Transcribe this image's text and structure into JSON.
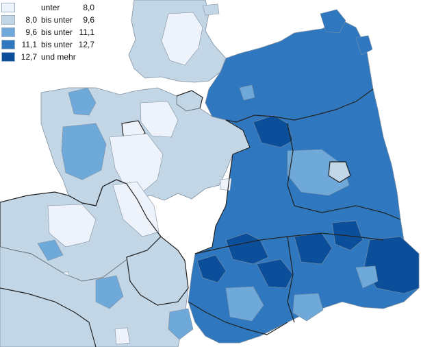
{
  "legend": {
    "items": [
      {
        "lower": "",
        "connector": "unter",
        "upper": "8,0",
        "color": "#eef3fb"
      },
      {
        "lower": "8,0",
        "connector": "bis unter",
        "upper": "9,6",
        "color": "#c2d6e6"
      },
      {
        "lower": "9,6",
        "connector": "bis unter",
        "upper": "11,1",
        "color": "#6ea9d9"
      },
      {
        "lower": "11,1",
        "connector": "bis unter",
        "upper": "12,7",
        "color": "#2f78c0"
      },
      {
        "lower": "12,7",
        "connector": "und mehr",
        "upper": "",
        "color": "#0b4f9a"
      }
    ]
  },
  "colors": {
    "background": "#ffffff",
    "border_state": "#222222",
    "border_district": "#7f8fa0"
  }
}
